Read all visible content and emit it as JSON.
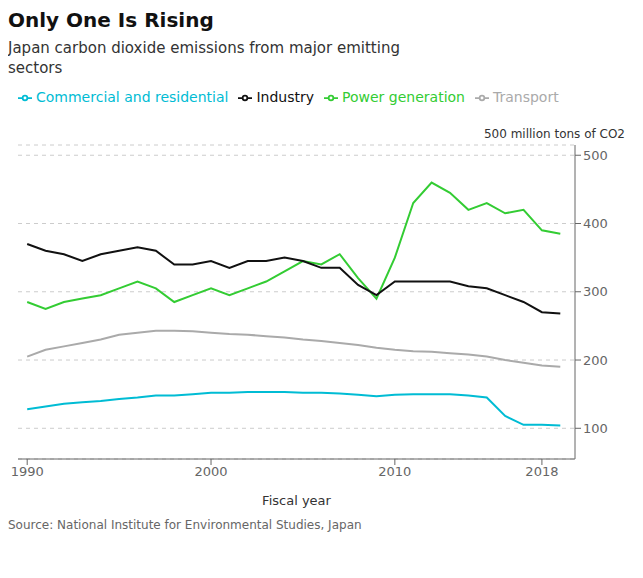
{
  "chart_data": {
    "type": "line",
    "title": "Only One Is Rising",
    "subtitle": "Japan carbon dioxide emissions from major emitting\nsectors",
    "ylabel": "500 million tons of CO2",
    "xlabel": "Fiscal year",
    "annotations": [
      "Source: National Institute for Environmental Studies, Japan"
    ],
    "x": [
      1990,
      1991,
      1992,
      1993,
      1994,
      1995,
      1996,
      1997,
      1998,
      1999,
      2000,
      2001,
      2002,
      2003,
      2004,
      2005,
      2006,
      2007,
      2008,
      2009,
      2010,
      2011,
      2012,
      2013,
      2014,
      2015,
      2016,
      2017,
      2018,
      2019
    ],
    "series": [
      {
        "name": "Power generation",
        "color": "#33cc33",
        "values": [
          285,
          275,
          285,
          290,
          295,
          305,
          315,
          305,
          285,
          295,
          305,
          295,
          305,
          315,
          330,
          345,
          340,
          355,
          320,
          290,
          350,
          430,
          460,
          445,
          420,
          430,
          415,
          420,
          390,
          385
        ]
      },
      {
        "name": "Industry",
        "color": "#111111",
        "values": [
          370,
          360,
          355,
          345,
          355,
          360,
          365,
          360,
          340,
          340,
          345,
          335,
          345,
          345,
          350,
          345,
          335,
          335,
          310,
          295,
          315,
          315,
          315,
          315,
          308,
          305,
          295,
          285,
          270,
          268
        ]
      },
      {
        "name": "Transport",
        "color": "#aaaaaa",
        "values": [
          205,
          215,
          220,
          225,
          230,
          237,
          240,
          243,
          243,
          242,
          240,
          238,
          237,
          235,
          233,
          230,
          228,
          225,
          222,
          218,
          215,
          213,
          212,
          210,
          208,
          205,
          200,
          196,
          192,
          190
        ]
      },
      {
        "name": "Commercial and residential",
        "color": "#00bcd4",
        "values": [
          128,
          132,
          136,
          138,
          140,
          143,
          145,
          148,
          148,
          150,
          152,
          152,
          153,
          153,
          153,
          152,
          152,
          151,
          149,
          147,
          149,
          150,
          150,
          150,
          148,
          145,
          118,
          105,
          105,
          104
        ]
      }
    ],
    "xlim": [
      1989.5,
      2019.8
    ],
    "xticks": [
      1990,
      2000,
      2010,
      2018
    ],
    "ylim": [
      55,
      515
    ],
    "yticks": [
      100,
      200,
      300,
      400,
      500
    ],
    "grid": true,
    "legend": "top left"
  }
}
